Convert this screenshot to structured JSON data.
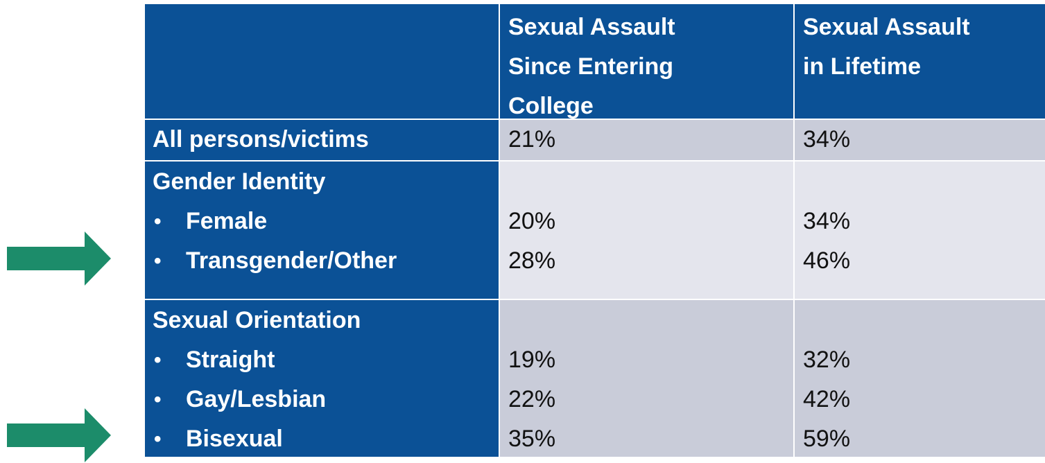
{
  "table": {
    "header": [
      [
        "Sexual Assault",
        "Since Entering",
        "College"
      ],
      [
        "Sexual Assault",
        "in Lifetime"
      ]
    ],
    "rows": [
      {
        "label": "All persons/victims",
        "values": [
          "21%",
          "34%"
        ]
      },
      {
        "label": "Gender Identity",
        "items": [
          {
            "label": "Female",
            "values": [
              "20%",
              "34%"
            ]
          },
          {
            "label": "Transgender/Other",
            "values": [
              "28%",
              "46%"
            ]
          }
        ]
      },
      {
        "label": "Sexual Orientation",
        "items": [
          {
            "label": "Straight",
            "values": [
              "19%",
              "32%"
            ]
          },
          {
            "label": "Gay/Lesbian",
            "values": [
              "22%",
              "42%"
            ]
          },
          {
            "label": "Bisexual",
            "values": [
              "35%",
              "59%"
            ]
          }
        ]
      }
    ]
  }
}
